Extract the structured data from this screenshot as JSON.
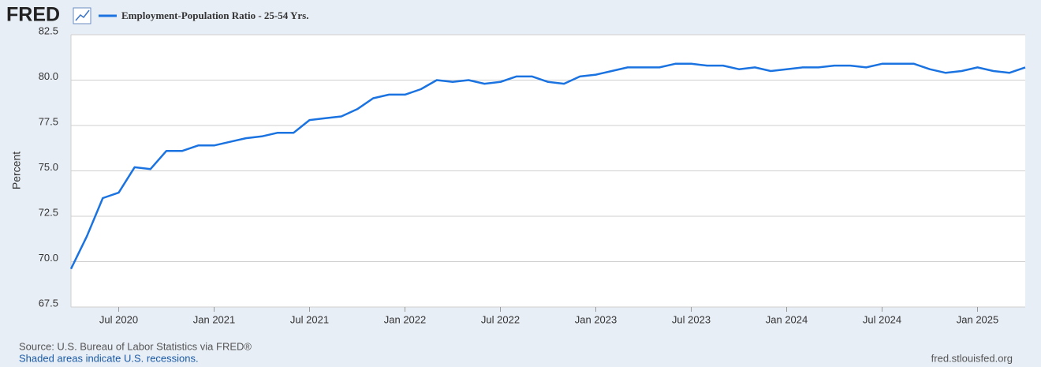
{
  "chart_data": {
    "type": "line",
    "logo": "FRED",
    "ylabel": "Percent",
    "source": "Source: U.S. Bureau of Labor Statistics via FRED®",
    "note": "Shaded areas indicate U.S. recessions.",
    "credit": "fred.stlouisfed.org",
    "x": [
      "2020-04",
      "2020-05",
      "2020-06",
      "2020-07",
      "2020-08",
      "2020-09",
      "2020-10",
      "2020-11",
      "2020-12",
      "2021-01",
      "2021-02",
      "2021-03",
      "2021-04",
      "2021-05",
      "2021-06",
      "2021-07",
      "2021-08",
      "2021-09",
      "2021-10",
      "2021-11",
      "2021-12",
      "2022-01",
      "2022-02",
      "2022-03",
      "2022-04",
      "2022-05",
      "2022-06",
      "2022-07",
      "2022-08",
      "2022-09",
      "2022-10",
      "2022-11",
      "2022-12",
      "2023-01",
      "2023-02",
      "2023-03",
      "2023-04",
      "2023-05",
      "2023-06",
      "2023-07",
      "2023-08",
      "2023-09",
      "2023-10",
      "2023-11",
      "2023-12",
      "2024-01",
      "2024-02",
      "2024-03",
      "2024-04",
      "2024-05",
      "2024-06",
      "2024-07",
      "2024-08",
      "2024-09",
      "2024-10",
      "2024-11",
      "2024-12",
      "2025-01",
      "2025-02",
      "2025-03",
      "2025-04"
    ],
    "series": [
      {
        "name": "Employment-Population Ratio - 25-54 Yrs.",
        "color": "#1a73e0",
        "values": [
          69.6,
          71.4,
          73.5,
          73.8,
          75.2,
          75.1,
          76.1,
          76.1,
          76.4,
          76.4,
          76.6,
          76.8,
          76.9,
          77.1,
          77.1,
          77.8,
          77.9,
          78.0,
          78.4,
          79.0,
          79.2,
          79.2,
          79.5,
          80.0,
          79.9,
          80.0,
          79.8,
          79.9,
          80.2,
          80.2,
          79.9,
          79.8,
          80.2,
          80.3,
          80.5,
          80.7,
          80.7,
          80.7,
          80.9,
          80.9,
          80.8,
          80.8,
          80.6,
          80.7,
          80.5,
          80.6,
          80.7,
          80.7,
          80.8,
          80.8,
          80.7,
          80.9,
          80.9,
          80.9,
          80.6,
          80.4,
          80.5,
          80.7,
          80.5,
          80.4,
          80.7
        ]
      }
    ],
    "xlim": [
      "2020-04",
      "2025-04"
    ],
    "xticks": [
      {
        "value": "2020-07",
        "label": "Jul 2020"
      },
      {
        "value": "2021-01",
        "label": "Jan 2021"
      },
      {
        "value": "2021-07",
        "label": "Jul 2021"
      },
      {
        "value": "2022-01",
        "label": "Jan 2022"
      },
      {
        "value": "2022-07",
        "label": "Jul 2022"
      },
      {
        "value": "2023-01",
        "label": "Jan 2023"
      },
      {
        "value": "2023-07",
        "label": "Jul 2023"
      },
      {
        "value": "2024-01",
        "label": "Jan 2024"
      },
      {
        "value": "2024-07",
        "label": "Jul 2024"
      },
      {
        "value": "2025-01",
        "label": "Jan 2025"
      }
    ],
    "ylim": [
      67.5,
      82.5
    ],
    "yticks": [
      {
        "value": 67.5,
        "label": "67.5"
      },
      {
        "value": 70,
        "label": "70.0"
      },
      {
        "value": 72.5,
        "label": "72.5"
      },
      {
        "value": 75,
        "label": "75.0"
      },
      {
        "value": 77.5,
        "label": "77.5"
      },
      {
        "value": 80,
        "label": "80.0"
      },
      {
        "value": 82.5,
        "label": "82.5"
      }
    ],
    "grid": true
  }
}
